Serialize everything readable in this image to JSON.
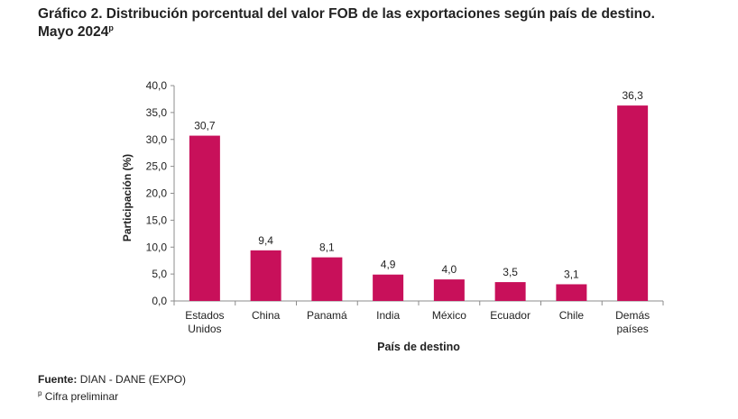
{
  "title": {
    "line1": "Gráfico 2. Distribución porcentual del valor FOB de las exportaciones según país de destino.",
    "line2": "Mayo 2024",
    "line2_sup": "p"
  },
  "footer": {
    "source_label": "Fuente:",
    "source_text": "DIAN - DANE (EXPO)",
    "note_sup": "p",
    "note_text": "Cifra preliminar"
  },
  "chart_data": {
    "type": "bar",
    "categories": [
      [
        "Estados",
        "Unidos"
      ],
      [
        "China"
      ],
      [
        "Panamá"
      ],
      [
        "India"
      ],
      [
        "México"
      ],
      [
        "Ecuador"
      ],
      [
        "Chile"
      ],
      [
        "Demás",
        "países"
      ]
    ],
    "values": [
      30.7,
      9.4,
      8.1,
      4.9,
      4.0,
      3.5,
      3.1,
      36.3
    ],
    "data_labels": [
      "30,7",
      "9,4",
      "8,1",
      "4,9",
      "4,0",
      "3,5",
      "3,1",
      "36,3"
    ],
    "xlabel": "País de destino",
    "ylabel": "Participación (%)",
    "ylim": [
      0,
      40
    ],
    "yticks": [
      0,
      5,
      10,
      15,
      20,
      25,
      30,
      35,
      40
    ],
    "ytick_labels": [
      "0,0",
      "5,0",
      "10,0",
      "15,0",
      "20,0",
      "25,0",
      "30,0",
      "35,0",
      "40,0"
    ],
    "bar_color": "#c8105a",
    "grid": false,
    "legend": "none"
  }
}
